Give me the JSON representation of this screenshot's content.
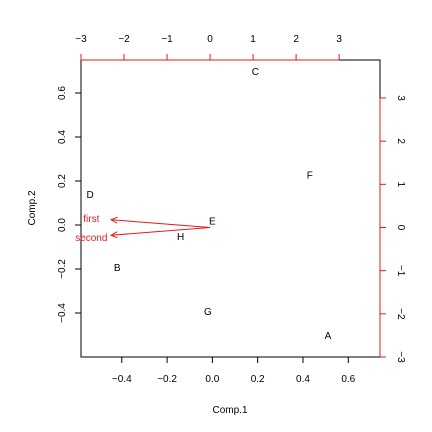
{
  "chart_data": {
    "type": "scatter",
    "title": "",
    "xlabel": "Comp.1",
    "ylabel": "Comp.2",
    "colors": {
      "points": "#000000",
      "loadings": "#e41a1c"
    },
    "points": [
      {
        "label": "A",
        "x": 0.51,
        "y": -0.5
      },
      {
        "label": "B",
        "x": -0.42,
        "y": -0.19
      },
      {
        "label": "C",
        "x": 0.19,
        "y": 0.7
      },
      {
        "label": "D",
        "x": -0.54,
        "y": 0.14
      },
      {
        "label": "E",
        "x": 0.0,
        "y": 0.02
      },
      {
        "label": "F",
        "x": 0.43,
        "y": 0.23
      },
      {
        "label": "G",
        "x": -0.02,
        "y": -0.39
      },
      {
        "label": "H",
        "x": -0.14,
        "y": -0.05
      }
    ],
    "loadings": [
      {
        "label": "first",
        "x": -2.3,
        "y": 0.18
      },
      {
        "label": "second",
        "x": -2.3,
        "y": -0.18
      }
    ],
    "x_ticks": [
      "-0.4",
      "-0.2",
      "0.0",
      "0.2",
      "0.4",
      "0.6"
    ],
    "y_ticks": [
      "-0.4",
      "-0.2",
      "0.0",
      "0.2",
      "0.4",
      "0.6"
    ],
    "top_ticks": [
      "-3",
      "-2",
      "-1",
      "0",
      "1",
      "2",
      "3"
    ],
    "right_ticks": [
      "-3",
      "-2",
      "-1",
      "0",
      "1",
      "2",
      "3"
    ],
    "xlim": [
      -0.58,
      0.74
    ],
    "ylim": [
      -0.6,
      0.75
    ],
    "loadings_xlim": [
      -3.0,
      3.95
    ],
    "loadings_ylim": [
      -3.0,
      3.88
    ],
    "grid": false
  }
}
